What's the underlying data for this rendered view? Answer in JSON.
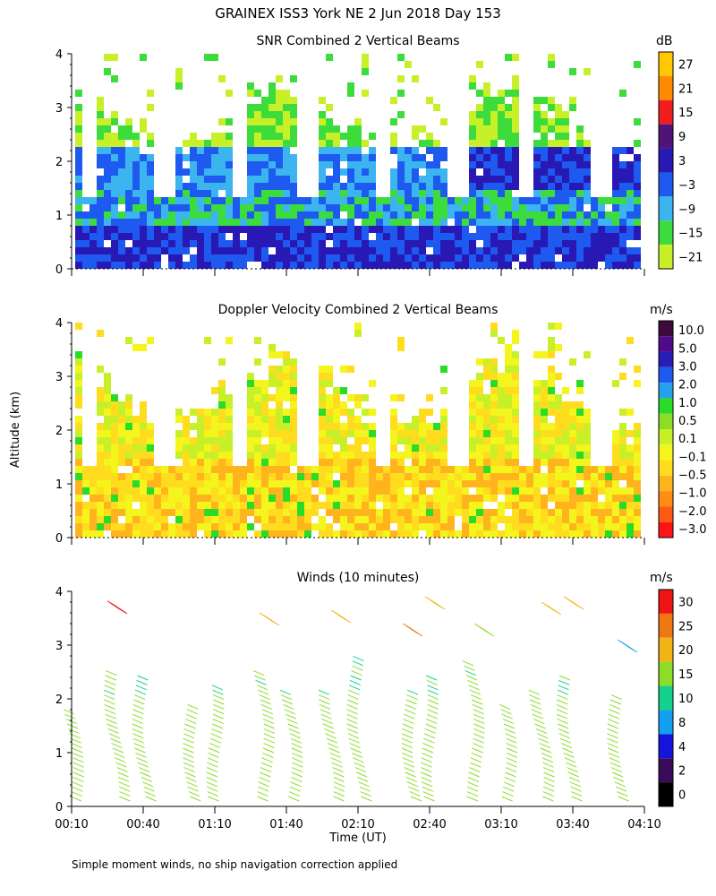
{
  "header": {
    "title": "GRAINEX ISS3 York NE   2 Jun 2018 Day 153"
  },
  "footer": {
    "note": "Simple moment winds, no ship navigation correction applied"
  },
  "colors": {
    "snr": [
      "#c8f028",
      "#3cdc3c",
      "#3cb4f0",
      "#1e5af0",
      "#2818b4",
      "#501478",
      "#f01e1e",
      "#ff8c00",
      "#ffc800"
    ],
    "doppler": [
      "#ff1414",
      "#ff5a14",
      "#ff8c14",
      "#ffb41e",
      "#ffdc1e",
      "#f5f51e",
      "#c8f028",
      "#8cdc28",
      "#28dc28",
      "#28a0f0",
      "#1e5af0",
      "#281eb4",
      "#500a8c",
      "#3c0a3c"
    ],
    "winds": [
      "#000000",
      "#3c0a5a",
      "#1414dc",
      "#14a0f0",
      "#14d28c",
      "#8cdc28",
      "#f0b414",
      "#f07814",
      "#f01414"
    ]
  },
  "chart_data": [
    {
      "type": "heatmap",
      "title": "SNR Combined 2 Vertical Beams",
      "ylabel": "Altitude (km)",
      "xlabel": "Time (UT)",
      "x_ticks": [
        "00:10",
        "00:40",
        "01:10",
        "01:40",
        "02:10",
        "02:40",
        "03:10",
        "03:40",
        "04:10"
      ],
      "y_ticks": [
        "0",
        "1",
        "2",
        "3",
        "4"
      ],
      "xlim": [
        "00:10",
        "04:10"
      ],
      "ylim": [
        0,
        4
      ],
      "colorbar": {
        "unit": "dB",
        "labels": [
          "27",
          "21",
          "15",
          "9",
          "3",
          "−3",
          "−9",
          "−15",
          "−21"
        ]
      }
    },
    {
      "type": "heatmap",
      "title": "Doppler Velocity Combined 2 Vertical Beams",
      "ylabel": "Altitude (km)",
      "xlabel": "Time (UT)",
      "x_ticks": [
        "00:10",
        "00:40",
        "01:10",
        "01:40",
        "02:10",
        "02:40",
        "03:10",
        "03:40",
        "04:10"
      ],
      "y_ticks": [
        "0",
        "1",
        "2",
        "3",
        "4"
      ],
      "xlim": [
        "00:10",
        "04:10"
      ],
      "ylim": [
        0,
        4
      ],
      "colorbar": {
        "unit": "m/s",
        "labels": [
          "10.0",
          "5.0",
          "3.0",
          "2.0",
          "1.0",
          "0.5",
          "0.1",
          "−0.1",
          "−0.5",
          "−1.0",
          "−2.0",
          "−3.0"
        ]
      }
    },
    {
      "type": "scatter",
      "title": "Winds (10 minutes)",
      "ylabel": "Altitude (km)",
      "xlabel": "Time (UT)",
      "x_ticks": [
        "00:10",
        "00:40",
        "01:10",
        "01:40",
        "02:10",
        "02:40",
        "03:10",
        "03:40",
        "04:10"
      ],
      "y_ticks": [
        "0",
        "1",
        "2",
        "3",
        "4"
      ],
      "xlim": [
        "00:10",
        "04:10"
      ],
      "ylim": [
        0,
        4
      ],
      "colorbar": {
        "unit": "m/s",
        "labels": [
          "30",
          "25",
          "20",
          "15",
          "10",
          "8",
          "4",
          "2",
          "0"
        ]
      }
    }
  ],
  "axis_label": "Altitude (km)",
  "xlabel": "Time (UT)"
}
